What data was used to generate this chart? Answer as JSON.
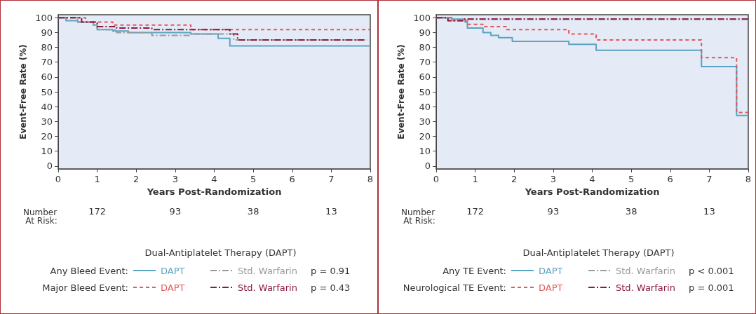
{
  "chart_data": [
    {
      "type": "step",
      "xlabel": "Years Post-Randomization",
      "ylabel": "Event-Free Rate (%)",
      "legend_title": "Dual-Antiplatelet Therapy (DAPT)",
      "xlim": [
        0,
        8
      ],
      "ylim": [
        -2,
        102
      ],
      "xticks": [
        0,
        1,
        2,
        3,
        4,
        5,
        6,
        7,
        8
      ],
      "yticks": [
        0,
        10,
        20,
        30,
        40,
        50,
        60,
        70,
        80,
        90,
        100
      ],
      "grid": false,
      "legend": "bottom",
      "marker": "none",
      "annotations": [
        "Any Bleed Event:",
        "p = 0.91",
        "Major Bleed Event:",
        "p = 0.43",
        "Number At Risk:",
        "172",
        "93",
        "38",
        "13"
      ],
      "series": [
        {
          "name": "DAPT",
          "color": "#5aa3c2",
          "line_style": "solid",
          "x": [
            0,
            0.2,
            0.5,
            0.9,
            1.0,
            1.4,
            1.8,
            3.4,
            4.1,
            4.4,
            8
          ],
          "values": [
            100,
            98,
            97,
            95,
            92,
            91,
            90,
            89,
            86,
            81,
            81
          ]
        },
        {
          "name": "Std. Warfarin",
          "color": "#9a9a9a",
          "line_style": "dashdot",
          "x": [
            0,
            0.5,
            1.0,
            1.5,
            2.4,
            3.4,
            4.5,
            7.9
          ],
          "values": [
            100,
            97,
            92,
            90,
            88,
            89,
            85,
            85
          ]
        },
        {
          "name": "DAPT",
          "color": "#e05a5a",
          "line_style": "dashed",
          "x": [
            0,
            0.7,
            1.4,
            3.4,
            8
          ],
          "values": [
            100,
            97,
            95,
            92,
            92
          ]
        },
        {
          "name": "Std. Warfarin",
          "color": "#8b1a3f",
          "line_style": "dashdot",
          "x": [
            0,
            0.6,
            1.0,
            1.5,
            2.4,
            4.4,
            4.6,
            7.9
          ],
          "values": [
            100,
            97,
            94,
            93,
            92,
            89,
            85,
            85
          ]
        }
      ]
    },
    {
      "type": "step",
      "xlabel": "Years Post-Randomization",
      "ylabel": "Event-Free Rate (%)",
      "legend_title": "Dual-Antiplatelet Therapy (DAPT)",
      "xlim": [
        0,
        8
      ],
      "ylim": [
        -2,
        102
      ],
      "xticks": [
        0,
        1,
        2,
        3,
        4,
        5,
        6,
        7,
        8
      ],
      "yticks": [
        0,
        10,
        20,
        30,
        40,
        50,
        60,
        70,
        80,
        90,
        100
      ],
      "grid": false,
      "legend": "bottom",
      "marker": "none",
      "annotations": [
        "Any TE Event:",
        "p < 0.001",
        "Neurological TE Event:",
        "p = 0.001",
        "Number At Risk:",
        "172",
        "93",
        "38",
        "13"
      ],
      "series": [
        {
          "name": "DAPT",
          "color": "#5aa3c2",
          "line_style": "solid",
          "x": [
            0,
            0.4,
            0.74,
            0.8,
            1.2,
            1.4,
            1.6,
            1.95,
            3.4,
            4.1,
            6.8,
            7.7,
            8
          ],
          "values": [
            100,
            99,
            97,
            93,
            90,
            88,
            86.5,
            84,
            82,
            78,
            67,
            34,
            34
          ]
        },
        {
          "name": "Std. Warfarin",
          "color": "#9a9a9a",
          "line_style": "dashdot",
          "x": [
            0,
            0.3,
            0.7,
            8
          ],
          "values": [
            100,
            98,
            99,
            99
          ]
        },
        {
          "name": "DAPT",
          "color": "#e05a5a",
          "line_style": "dashed",
          "x": [
            0,
            0.4,
            0.8,
            1.2,
            1.8,
            3.4,
            4.1,
            6.8,
            7.7,
            8
          ],
          "values": [
            100,
            98,
            95.5,
            94,
            92,
            89,
            85,
            73,
            36,
            36
          ]
        },
        {
          "name": "Std. Warfarin",
          "color": "#8b1a3f",
          "line_style": "dashdot",
          "x": [
            0,
            0.3,
            0.7,
            8
          ],
          "values": [
            100,
            98,
            99,
            99
          ]
        }
      ]
    }
  ]
}
